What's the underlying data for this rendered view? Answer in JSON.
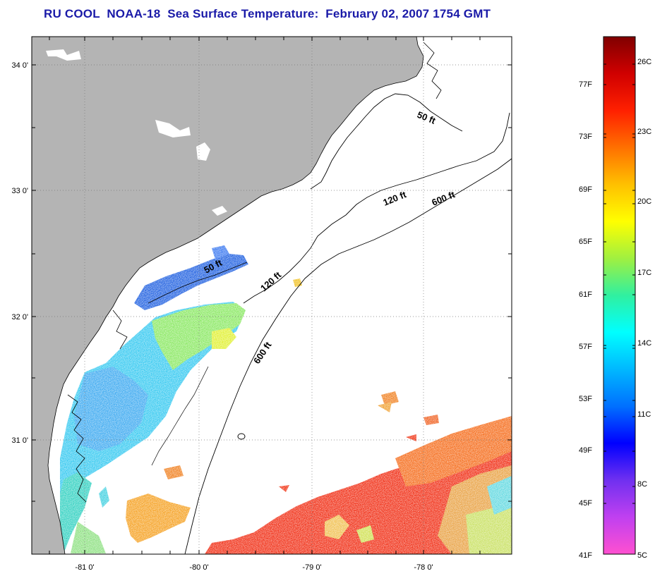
{
  "title": "RU COOL  NOAA-18  Sea Surface Temperature:  February 02, 2007 1754 GMT",
  "map": {
    "lon_labels": [
      "-81 0'",
      "-80 0'",
      "-79 0'",
      "-78 0'"
    ],
    "lat_labels": [
      "34 0'",
      "33 0'",
      "32 0'",
      "31 0'"
    ],
    "contour_labels": [
      {
        "text": "50 ft",
        "id": "contour-label-50ft-north"
      },
      {
        "text": "120 ft",
        "id": "contour-label-120ft-north"
      },
      {
        "text": "600 ft",
        "id": "contour-label-600ft-north"
      },
      {
        "text": "50 ft",
        "id": "contour-label-50ft-south"
      },
      {
        "text": "120 ft",
        "id": "contour-label-120ft-south"
      },
      {
        "text": "600 ft",
        "id": "contour-label-600ft-south"
      }
    ],
    "land_color": "#b4b4b4",
    "ocean_color": "#ffffff"
  },
  "colorbar": {
    "fahrenheit_labels": [
      "77F",
      "73F",
      "69F",
      "65F",
      "61F",
      "57F",
      "53F",
      "49F",
      "45F",
      "41F"
    ],
    "celsius_labels": [
      "26C",
      "23C",
      "20C",
      "17C",
      "14C",
      "11C",
      "8C",
      "5C"
    ],
    "colors": [
      "#ff50d0",
      "#c040f0",
      "#7030f0",
      "#0000ff",
      "#0070ff",
      "#00b8ff",
      "#00ffff",
      "#30f0a0",
      "#a0f040",
      "#ffff00",
      "#ffc000",
      "#ff7000",
      "#ff2000",
      "#d00000",
      "#800000"
    ]
  }
}
